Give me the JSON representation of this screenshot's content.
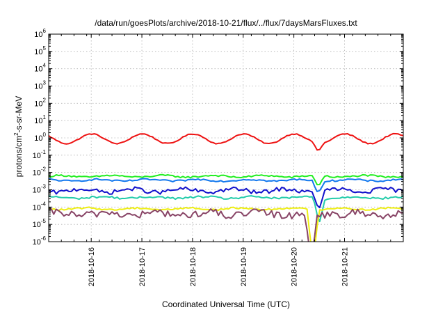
{
  "chart_data": {
    "type": "line",
    "title": "/data/run/goesPlots/archive/2018-10-21/flux/../flux/7daysMarsFluxes.txt",
    "xlabel": "Coordinated Universal Time (UTC)",
    "ylabel": {
      "base": "protons/cm",
      "sup": "2",
      "rest": "-s-sr-MeV"
    },
    "yscale": "log",
    "ylim_exp": [
      -6,
      6
    ],
    "ytick_exps": [
      -6,
      -5,
      -4,
      -3,
      -2,
      -1,
      0,
      1,
      2,
      3,
      4,
      5,
      6
    ],
    "ytick_base": "10",
    "x_range_days": [
      0,
      7
    ],
    "xticks": [
      {
        "day": 0.84,
        "label": "2018-10-16"
      },
      {
        "day": 1.84,
        "label": "2018-10-17"
      },
      {
        "day": 2.84,
        "label": "2018-10-18"
      },
      {
        "day": 3.84,
        "label": "2018-10-19"
      },
      {
        "day": 4.84,
        "label": "2018-10-20"
      },
      {
        "day": 5.84,
        "label": "2018-10-21"
      }
    ],
    "grid": true,
    "series": [
      {
        "color": "#ee1111",
        "log10_base": -0.05,
        "osc_amp": 0.28,
        "osc_period": 1.0,
        "osc_phase": 0.4,
        "noise": 0.03,
        "dip_day": 5.32,
        "dip_depth": 0.45
      },
      {
        "color": "#22ee22",
        "log10_base": -2.22,
        "osc_amp": 0.05,
        "osc_period": 1.0,
        "osc_phase": 0.0,
        "noise": 0.05,
        "dip_day": 5.32,
        "dip_depth": 0.65
      },
      {
        "color": "#1177ee",
        "log10_base": -2.45,
        "osc_amp": 0.05,
        "osc_period": 1.0,
        "osc_phase": 0.3,
        "noise": 0.05,
        "dip_day": 5.32,
        "dip_depth": 0.8
      },
      {
        "color": "#1111cc",
        "log10_base": -3.05,
        "osc_amp": 0.1,
        "osc_period": 1.0,
        "osc_phase": 0.6,
        "noise": 0.12,
        "dip_day": 5.34,
        "dip_depth": 1.1
      },
      {
        "color": "#22ccaa",
        "log10_base": -3.45,
        "osc_amp": 0.05,
        "osc_period": 1.0,
        "osc_phase": 0.2,
        "noise": 0.06,
        "dip_day": 5.34,
        "dip_depth": 1.5
      },
      {
        "color": "#eeee11",
        "log10_base": -4.1,
        "osc_amp": 0.05,
        "osc_period": 1.0,
        "osc_phase": 0.5,
        "noise": 0.05,
        "dip_day": 5.22,
        "dip_depth": 3.0
      },
      {
        "color": "#884466",
        "log10_base": -4.4,
        "osc_amp": 0.1,
        "osc_period": 1.0,
        "osc_phase": 0.1,
        "noise": 0.22,
        "dip_day": 5.18,
        "dip_depth": 3.0
      }
    ]
  }
}
